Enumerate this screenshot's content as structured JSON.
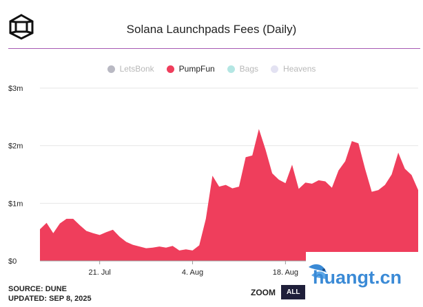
{
  "header": {
    "title": "Solana Launchpads Fees (Daily)"
  },
  "legend": [
    {
      "label": "LetsBonk",
      "color": "#b9b9c3",
      "active": false
    },
    {
      "label": "PumpFun",
      "color": "#ef3e5c",
      "active": true
    },
    {
      "label": "Bags",
      "color": "#b4e6e3",
      "active": false
    },
    {
      "label": "Heavens",
      "color": "#e3e2f2",
      "active": false
    }
  ],
  "footer": {
    "source": "SOURCE: DUNE",
    "updated": "UPDATED: SEP 8, 2025"
  },
  "zoom": {
    "label": "ZOOM",
    "button": "ALL"
  },
  "watermark": {
    "text": "huangt.cn",
    "icon": "bird-icon"
  },
  "chart_data": {
    "type": "area",
    "title": "Solana Launchpads Fees (Daily)",
    "xlabel": "",
    "ylabel": "",
    "x_tick_labels": [
      "21. Jul",
      "4. Aug",
      "18. Aug"
    ],
    "y_tick_labels": [
      "$0",
      "$1m",
      "$2m",
      "$3m"
    ],
    "y_ticks": [
      0,
      1000000,
      2000000,
      3000000
    ],
    "ylim": [
      0,
      3000000
    ],
    "xlim": [
      "2025-07-12",
      "2025-09-07"
    ],
    "grid": true,
    "legend_position": "top",
    "series": [
      {
        "name": "PumpFun",
        "color": "#ef3e5c",
        "dates": [
          "2025-07-12",
          "2025-07-13",
          "2025-07-14",
          "2025-07-15",
          "2025-07-16",
          "2025-07-17",
          "2025-07-18",
          "2025-07-19",
          "2025-07-20",
          "2025-07-21",
          "2025-07-22",
          "2025-07-23",
          "2025-07-24",
          "2025-07-25",
          "2025-07-26",
          "2025-07-27",
          "2025-07-28",
          "2025-07-29",
          "2025-07-30",
          "2025-07-31",
          "2025-08-01",
          "2025-08-02",
          "2025-08-03",
          "2025-08-04",
          "2025-08-05",
          "2025-08-06",
          "2025-08-07",
          "2025-08-08",
          "2025-08-09",
          "2025-08-10",
          "2025-08-11",
          "2025-08-12",
          "2025-08-13",
          "2025-08-14",
          "2025-08-15",
          "2025-08-16",
          "2025-08-17",
          "2025-08-18",
          "2025-08-19",
          "2025-08-20",
          "2025-08-21",
          "2025-08-22",
          "2025-08-23",
          "2025-08-24",
          "2025-08-25",
          "2025-08-26",
          "2025-08-27",
          "2025-08-28",
          "2025-08-29",
          "2025-08-30",
          "2025-08-31",
          "2025-09-01",
          "2025-09-02",
          "2025-09-03",
          "2025-09-04",
          "2025-09-05",
          "2025-09-06",
          "2025-09-07"
        ],
        "values": [
          550000,
          660000,
          480000,
          650000,
          730000,
          730000,
          620000,
          520000,
          480000,
          450000,
          500000,
          540000,
          420000,
          330000,
          280000,
          250000,
          220000,
          230000,
          250000,
          230000,
          260000,
          180000,
          200000,
          180000,
          270000,
          730000,
          1480000,
          1290000,
          1320000,
          1260000,
          1290000,
          1800000,
          1830000,
          2290000,
          1930000,
          1520000,
          1410000,
          1350000,
          1670000,
          1250000,
          1360000,
          1340000,
          1400000,
          1380000,
          1270000,
          1570000,
          1730000,
          2080000,
          2040000,
          1600000,
          1200000,
          1230000,
          1320000,
          1500000,
          1880000,
          1600000,
          1490000,
          1230000
        ]
      }
    ]
  }
}
